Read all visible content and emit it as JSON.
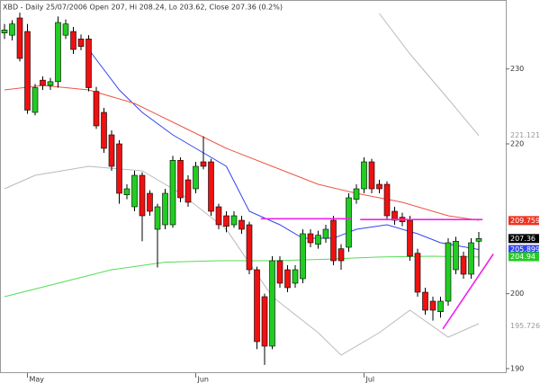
{
  "chart_data": {
    "type": "candlestick",
    "title": "XBD - Daily 25/07/2006 Open 207, Hi 208.24, Lo 203.62, Close 207.36 (0.2%)",
    "categories": [
      null,
      null,
      null,
      "May",
      null,
      null,
      null,
      null,
      null,
      null,
      null,
      null,
      null,
      null,
      null,
      null,
      null,
      null,
      null,
      null,
      null,
      null,
      null,
      null,
      null,
      "Jun",
      null,
      null,
      null,
      null,
      null,
      null,
      null,
      null,
      null,
      null,
      null,
      null,
      null,
      null,
      null,
      null,
      null,
      null,
      null,
      null,
      null,
      "Jul",
      null,
      null,
      null,
      null,
      null,
      null,
      null,
      null,
      null,
      null,
      null,
      null,
      null,
      null,
      null
    ],
    "open": [
      234.8,
      234.5,
      236.8,
      235,
      224.2,
      228.5,
      227.8,
      228.3,
      234.5,
      235,
      234,
      234,
      227,
      224.2,
      221.2,
      220,
      213.2,
      211.6,
      215.8,
      213.4,
      208.6,
      209.2,
      209.2,
      217.8,
      215.2,
      214,
      217.6,
      217.6,
      211.6,
      210.4,
      209.2,
      209.8,
      209.2,
      203.2,
      199.6,
      193,
      204.4,
      203.2,
      201.4,
      202,
      208,
      206.6,
      207.4,
      209.8,
      206,
      206.2,
      212.6,
      214,
      217.6,
      214.6,
      214.6,
      211,
      210.2,
      209.8,
      205.4,
      200.2,
      199,
      197.6,
      199,
      203.2,
      205,
      202.6,
      207
    ],
    "high": [
      236,
      236.5,
      237.5,
      236,
      228,
      229,
      228.8,
      237,
      236.6,
      235.6,
      234.6,
      234.5,
      227.6,
      224.8,
      221.8,
      220.5,
      214.6,
      216.4,
      216.2,
      213.8,
      212,
      214,
      218.4,
      218.2,
      215.8,
      217.6,
      221,
      218,
      212,
      211,
      211,
      210.4,
      209.6,
      203.6,
      200,
      205,
      205,
      203.8,
      203.8,
      208.6,
      208.6,
      208.4,
      209.2,
      210.4,
      206.6,
      213.4,
      214.6,
      218.2,
      218,
      215.2,
      215,
      211.6,
      210.8,
      210.4,
      206,
      200.8,
      199.6,
      199.6,
      207.4,
      207.6,
      205.6,
      207.4,
      208.24
    ],
    "low": [
      234,
      233.8,
      231,
      224,
      223.8,
      227.2,
      227.2,
      227.5,
      234,
      232,
      232.5,
      227,
      222,
      218.8,
      216.4,
      212,
      212.6,
      211,
      207,
      210.4,
      203.5,
      208.6,
      208.8,
      212.2,
      211.6,
      213.4,
      216.6,
      210.4,
      208.6,
      208.2,
      208.8,
      208,
      202.6,
      192.6,
      190.5,
      192.6,
      200.8,
      200.2,
      200.8,
      201.4,
      206.2,
      206,
      206.8,
      203.8,
      203.2,
      205.6,
      212,
      213.4,
      213.4,
      213.4,
      209.8,
      209.2,
      209,
      204.4,
      199.6,
      197.2,
      196.4,
      196.8,
      198.4,
      202.6,
      202,
      202,
      203.62
    ],
    "close": [
      235.2,
      236,
      231.4,
      224.5,
      227.5,
      227.8,
      228.3,
      236.2,
      236,
      232.6,
      233,
      227.5,
      222.4,
      219.4,
      217,
      213.4,
      214,
      215.8,
      210.4,
      211,
      211.6,
      213.4,
      217.8,
      212.8,
      212.2,
      217,
      217,
      211,
      209.2,
      209,
      210.4,
      208.6,
      203.2,
      193.6,
      193,
      204.4,
      201.4,
      200.8,
      203.2,
      208,
      206.8,
      207.8,
      208.6,
      204.4,
      204.4,
      212.8,
      214,
      217.6,
      214,
      214,
      210.4,
      209.8,
      209.6,
      205,
      200.2,
      197.8,
      197.8,
      199,
      206.8,
      207,
      202.6,
      206.8,
      207.36
    ],
    "up_color": "#22cc22",
    "down_color": "#ee1111",
    "overlays": [
      {
        "color": "#3344ee",
        "x": [
          11,
          15,
          18,
          22,
          25,
          29,
          32,
          36,
          39,
          43,
          46,
          50,
          54,
          57,
          62
        ],
        "values": [
          232.6,
          227.2,
          224.2,
          221.2,
          219.4,
          217,
          211,
          209.2,
          207.4,
          207.4,
          208.6,
          209.2,
          208,
          206.8,
          205.9
        ]
      },
      {
        "color": "#ee5544",
        "x": [
          0,
          5,
          11,
          17,
          23,
          29,
          35,
          41,
          46,
          52,
          58,
          62
        ],
        "values": [
          227.2,
          227.8,
          227.2,
          225.4,
          222.4,
          219.4,
          217,
          214.6,
          213.4,
          212.2,
          210.4,
          209.8
        ]
      },
      {
        "color": "#55dd55",
        "x": [
          0,
          7,
          14,
          21,
          28,
          35,
          42,
          49,
          56,
          62
        ],
        "values": [
          199.6,
          201.4,
          203.2,
          204.2,
          204.4,
          204.4,
          204.6,
          204.9,
          205,
          204.9
        ]
      },
      {
        "color": "#bbbbbb",
        "x": [
          49,
          53,
          58,
          62
        ],
        "values": [
          237.4,
          232,
          226,
          221.1
        ]
      },
      {
        "color": "#bbbbbb",
        "x": [
          0,
          4,
          11,
          18,
          23,
          29,
          35,
          41,
          44,
          49,
          53,
          58,
          62
        ],
        "values": [
          214,
          215.8,
          217,
          216.4,
          213.4,
          208.6,
          199.6,
          194.8,
          191.8,
          194.8,
          197.8,
          194.2,
          196
        ]
      }
    ],
    "annotation_lines": [
      {
        "color": "#ee22ee",
        "x": [
          33.5,
          45.3
        ],
        "values": [
          210,
          210
        ]
      },
      {
        "color": "#ee22ee",
        "x": [
          46.5,
          62.5
        ],
        "values": [
          209.9,
          209.9
        ]
      },
      {
        "color": "#ee22ee",
        "x": [
          57.3,
          63.9
        ],
        "values": [
          195.3,
          205.3
        ]
      }
    ],
    "markers": [
      {
        "value": 221.121,
        "color": "#999999",
        "boxed": false
      },
      {
        "value": 209.759,
        "color": "#ee3322",
        "boxed": true
      },
      {
        "value": 207.36,
        "color": "#000000",
        "boxed": true
      },
      {
        "value": 205.899,
        "color": "#3344ee",
        "boxed": true
      },
      {
        "value": 204.94,
        "color": "#22cc22",
        "boxed": true
      },
      {
        "value": 195.726,
        "color": "#999999",
        "boxed": false
      }
    ],
    "ylim": [
      189.4,
      239.2
    ],
    "yticks": [
      190,
      200,
      220,
      230
    ]
  }
}
